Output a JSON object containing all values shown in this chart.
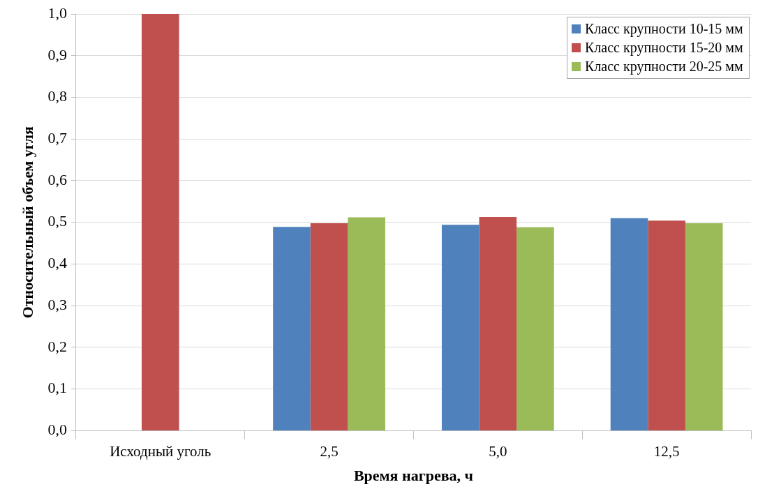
{
  "chart_data": {
    "type": "bar",
    "xlabel": "Время нагрева, ч",
    "ylabel": "Относительный объем угля",
    "categories": [
      "Исходный уголь",
      "2,5",
      "5,0",
      "12,5"
    ],
    "series": [
      {
        "name": "Класс крупности 10-15 мм",
        "color": "#4f81bd",
        "values": [
          null,
          0.489,
          0.494,
          0.51
        ]
      },
      {
        "name": "Класс крупности 15-20 мм",
        "color": "#c0504d",
        "values": [
          1.0,
          0.498,
          0.513,
          0.504
        ]
      },
      {
        "name": "Класс крупности 20-25 мм",
        "color": "#9bbb59",
        "values": [
          null,
          0.512,
          0.488,
          0.498
        ]
      }
    ],
    "ylim": [
      0,
      1
    ],
    "yticks": [
      {
        "value": 0,
        "label": "0,0"
      },
      {
        "value": 0.1,
        "label": "0,1"
      },
      {
        "value": 0.2,
        "label": "0,2"
      },
      {
        "value": 0.3,
        "label": "0,3"
      },
      {
        "value": 0.4,
        "label": "0,4"
      },
      {
        "value": 0.5,
        "label": "0,5"
      },
      {
        "value": 0.6,
        "label": "0,6"
      },
      {
        "value": 0.7,
        "label": "0,7"
      },
      {
        "value": 0.8,
        "label": "0,8"
      },
      {
        "value": 0.9,
        "label": "0,9"
      },
      {
        "value": 1,
        "label": "1,0"
      }
    ],
    "grid": "y",
    "legend": "top right"
  }
}
